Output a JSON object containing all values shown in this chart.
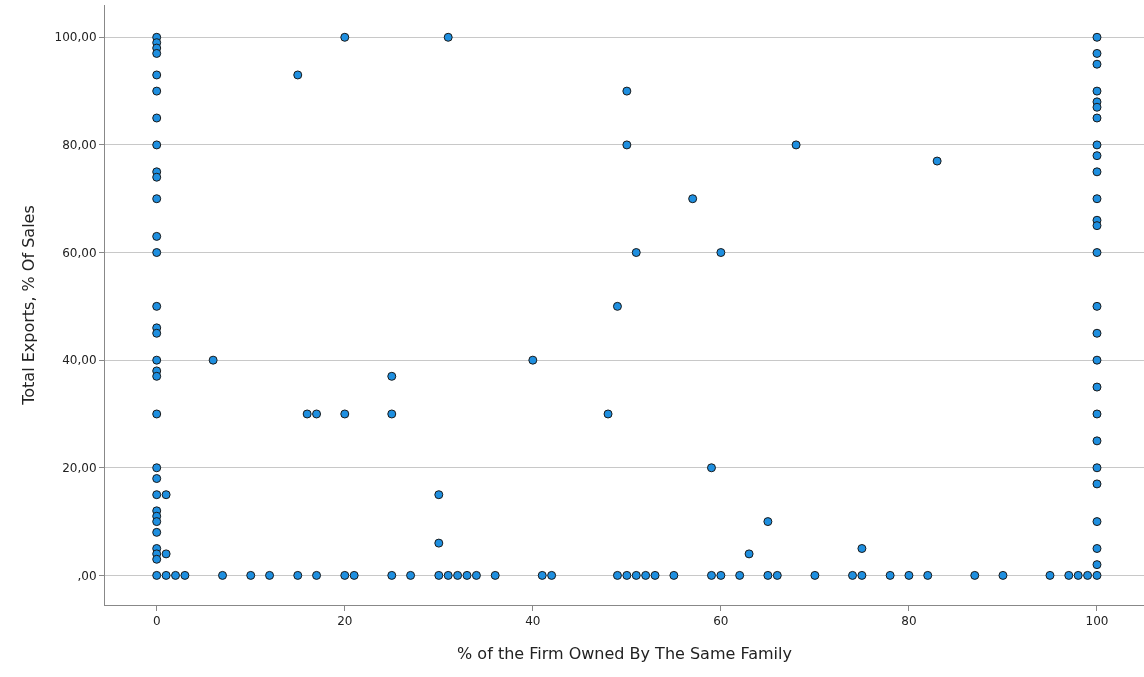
{
  "chart_data": {
    "type": "scatter",
    "xlabel": "% of the Firm Owned By The Same Family",
    "ylabel": "Total Exports, % Of Sales",
    "series": [
      {
        "color": "#1e8fe0",
        "x": [
          0,
          0,
          0,
          0,
          0,
          0,
          0,
          0,
          0,
          0,
          0,
          0,
          0,
          0,
          0,
          0,
          0,
          0,
          0,
          0,
          0,
          0,
          0,
          0,
          0,
          0,
          0,
          0,
          0,
          0,
          0,
          1,
          1,
          6,
          15,
          20,
          31,
          16,
          17,
          20,
          25,
          25,
          30,
          30,
          50,
          50,
          57,
          51,
          60,
          68,
          83,
          49,
          40,
          48,
          59,
          63,
          65,
          75,
          100,
          100,
          100,
          100,
          100,
          100,
          100,
          100,
          100,
          100,
          100,
          100,
          100,
          100,
          100,
          100,
          100,
          100,
          100,
          100,
          100,
          100,
          100,
          100,
          100,
          1,
          2,
          3,
          7,
          10,
          12,
          15,
          17,
          20,
          21,
          25,
          27,
          30,
          31,
          32,
          33,
          34,
          36,
          41,
          42,
          49,
          50,
          51,
          52,
          53,
          55,
          59,
          60,
          62,
          65,
          66,
          70,
          74,
          75,
          78,
          80,
          82,
          87,
          90,
          95,
          97,
          98,
          99,
          100
        ],
        "values": [
          100,
          99,
          98,
          97,
          93,
          90,
          85,
          80,
          75,
          74,
          70,
          63,
          60,
          50,
          46,
          45,
          40,
          38,
          37,
          30,
          20,
          18,
          15,
          12,
          11,
          10,
          8,
          5,
          4,
          3,
          0,
          15,
          4,
          40,
          93,
          100,
          100,
          30,
          30,
          30,
          30,
          37,
          15,
          6,
          90,
          80,
          70,
          60,
          60,
          80,
          77,
          50,
          40,
          30,
          20,
          4,
          10,
          5,
          100,
          97,
          95,
          90,
          88,
          87,
          85,
          80,
          78,
          75,
          70,
          66,
          65,
          60,
          50,
          45,
          40,
          35,
          30,
          25,
          20,
          17,
          10,
          5,
          2,
          0,
          0,
          0,
          0,
          0,
          0,
          0,
          0,
          0,
          0,
          0,
          0,
          0,
          0,
          0,
          0,
          0,
          0,
          0,
          0,
          0,
          0,
          0,
          0,
          0,
          0,
          0,
          0,
          0,
          0,
          0,
          0,
          0,
          0,
          0,
          0,
          0,
          0,
          0,
          0,
          0,
          0,
          0,
          0
        ]
      }
    ],
    "xlim": [
      -5.5,
      105
    ],
    "xticks": [
      0,
      20,
      40,
      60,
      80,
      100
    ],
    "ylim": [
      -5.5,
      106
    ],
    "yticks": [
      {
        "value": 0,
        "label": ",00"
      },
      {
        "value": 20,
        "label": "20,00"
      },
      {
        "value": 40,
        "label": "40,00"
      },
      {
        "value": 60,
        "label": "60,00"
      },
      {
        "value": 80,
        "label": "80,00"
      },
      {
        "value": 100,
        "label": "100,00"
      }
    ],
    "grid": "y",
    "marker": "circle"
  }
}
